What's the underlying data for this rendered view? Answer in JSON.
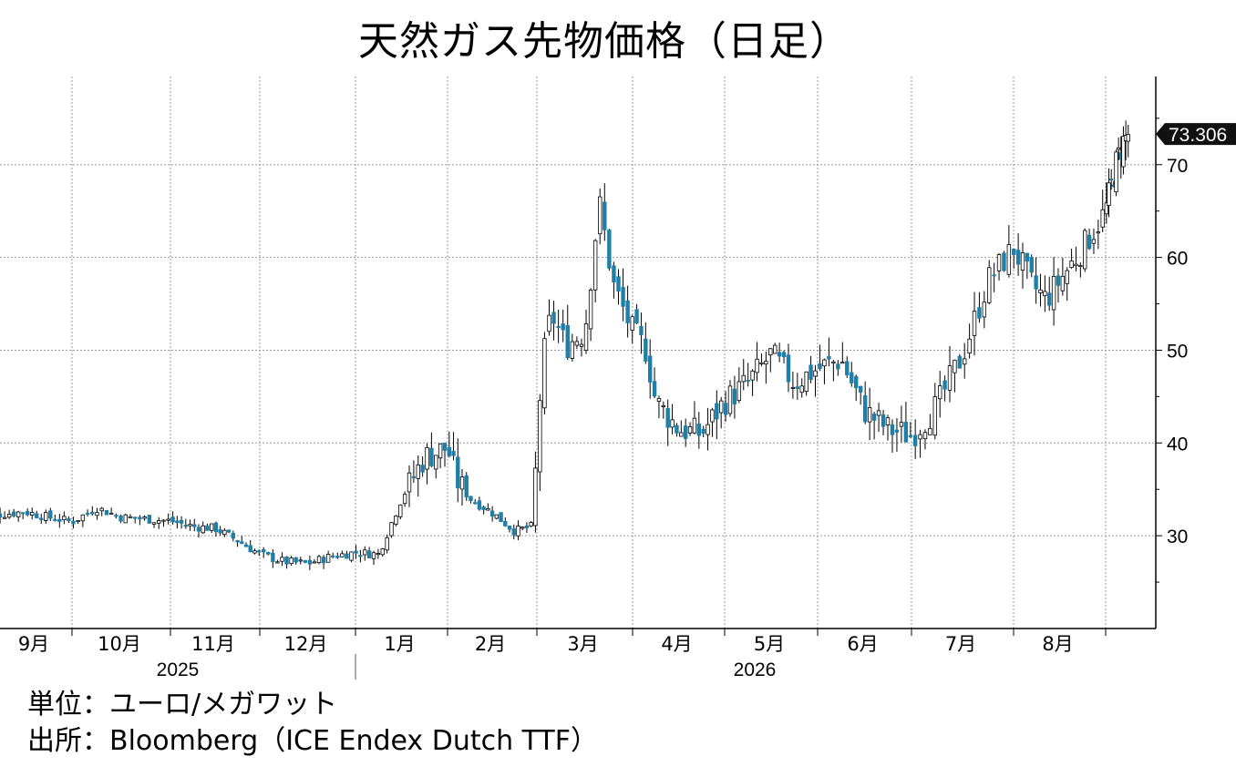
{
  "title": "天然ガス先物価格（日足）",
  "notes": {
    "unit": "単位：ユーロ/メガワット",
    "source": "出所：Bloomberg（ICE Endex Dutch TTF）"
  },
  "colors": {
    "up": "#ffffff",
    "down": "#1e7fa8",
    "wick": "#000000",
    "grid": "#9a9a9a"
  },
  "chart_data": {
    "type": "candlestick",
    "title": "天然ガス先物価格（日足）",
    "ylabel": "ユーロ/メガワット",
    "ylim": [
      20,
      79.5
    ],
    "yticks": [
      30,
      40,
      50,
      60,
      70
    ],
    "y_axis_side": "right",
    "grid": true,
    "last_value_label": "73.306",
    "months": [
      {
        "label": "9月",
        "year": "2025"
      },
      {
        "label": "10月",
        "year": "2025"
      },
      {
        "label": "11月",
        "year": "2025"
      },
      {
        "label": "12月",
        "year": "2025"
      },
      {
        "label": "1月",
        "year": "2026"
      },
      {
        "label": "2月",
        "year": "2026"
      },
      {
        "label": "3月",
        "year": "2026"
      },
      {
        "label": "4月",
        "year": "2026"
      },
      {
        "label": "5月",
        "year": "2026"
      },
      {
        "label": "6月",
        "year": "2026"
      },
      {
        "label": "7月",
        "year": "2026"
      },
      {
        "label": "8月",
        "year": "2026"
      }
    ],
    "years": [
      "2025",
      "2026"
    ],
    "close_path": [
      [
        0.0,
        32.8
      ],
      [
        0.25,
        32.3
      ],
      [
        0.5,
        32.6
      ],
      [
        0.75,
        32.0
      ],
      [
        1.0,
        31.5
      ],
      [
        1.25,
        33.0
      ],
      [
        1.5,
        32.0
      ],
      [
        1.75,
        31.8
      ],
      [
        2.0,
        31.6
      ],
      [
        2.25,
        31.0
      ],
      [
        2.5,
        30.8
      ],
      [
        2.75,
        29.5
      ],
      [
        3.0,
        28.0
      ],
      [
        3.25,
        27.2
      ],
      [
        3.5,
        27.0
      ],
      [
        3.75,
        27.8
      ],
      [
        4.0,
        28.2
      ],
      [
        4.25,
        28.0
      ],
      [
        4.5,
        34.0
      ],
      [
        4.75,
        38.5
      ],
      [
        5.0,
        39.5
      ],
      [
        5.1,
        36.0
      ],
      [
        5.25,
        34.0
      ],
      [
        5.5,
        32.5
      ],
      [
        5.75,
        30.5
      ],
      [
        5.95,
        31.0
      ],
      [
        6.05,
        48.0
      ],
      [
        6.15,
        54.0
      ],
      [
        6.3,
        50.5
      ],
      [
        6.5,
        52.0
      ],
      [
        6.65,
        66.0
      ],
      [
        6.8,
        57.0
      ],
      [
        7.0,
        52.0
      ],
      [
        7.15,
        50.0
      ],
      [
        7.25,
        44.5
      ],
      [
        7.5,
        41.5
      ],
      [
        7.75,
        41.0
      ],
      [
        8.0,
        44.5
      ],
      [
        8.25,
        46.5
      ],
      [
        8.5,
        49.5
      ],
      [
        8.75,
        46.5
      ],
      [
        9.0,
        48.0
      ],
      [
        9.25,
        49.0
      ],
      [
        9.5,
        43.5
      ],
      [
        9.75,
        41.5
      ],
      [
        10.0,
        40.8
      ],
      [
        10.25,
        44.0
      ],
      [
        10.5,
        49.5
      ],
      [
        10.75,
        57.5
      ],
      [
        11.0,
        61.0
      ],
      [
        11.2,
        57.0
      ],
      [
        11.35,
        55.5
      ],
      [
        11.5,
        57.5
      ],
      [
        11.75,
        61.0
      ],
      [
        12.0,
        65.0
      ],
      [
        12.2,
        70.0
      ],
      [
        12.35,
        72.5
      ],
      [
        12.45,
        73.3
      ]
    ]
  }
}
